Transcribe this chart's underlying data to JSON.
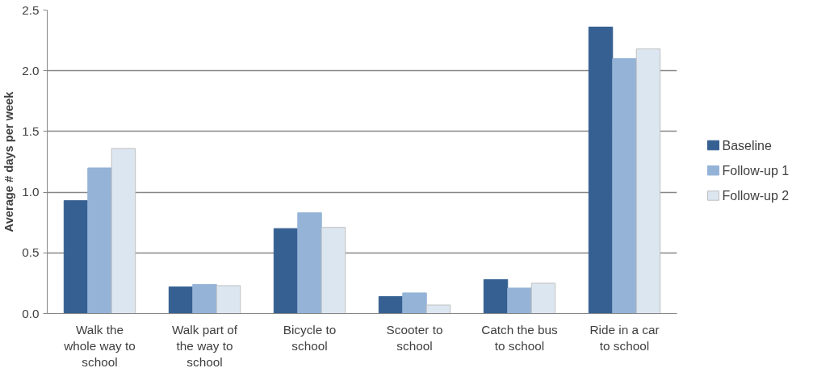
{
  "chart_data": {
    "type": "bar",
    "ylabel": "Average # days per week",
    "categories": [
      "Walk the whole way to school",
      "Walk part of the way to school",
      "Bicycle to school",
      "Scooter to school",
      "Catch the bus to school",
      "Ride in a car to school"
    ],
    "series": [
      {
        "name": "Baseline",
        "color": "#366092",
        "values": [
          0.93,
          0.22,
          0.7,
          0.14,
          0.28,
          2.36
        ]
      },
      {
        "name": "Follow-up 1",
        "color": "#95b3d7",
        "values": [
          1.2,
          0.24,
          0.83,
          0.17,
          0.21,
          2.1
        ]
      },
      {
        "name": "Follow-up 2",
        "color": "#dce6f1",
        "values": [
          1.36,
          0.23,
          0.71,
          0.07,
          0.25,
          2.18
        ]
      }
    ],
    "ylim": [
      0,
      2.5
    ],
    "yticks": [
      {
        "value": 0,
        "label": "0.0"
      },
      {
        "value": 0.5,
        "label": "0.5"
      },
      {
        "value": 1,
        "label": "1.0"
      },
      {
        "value": 1.5,
        "label": "1.5"
      },
      {
        "value": 2,
        "label": "2.0"
      },
      {
        "value": 2.5,
        "label": "2.5"
      }
    ],
    "grid": "y",
    "legend": "right"
  }
}
